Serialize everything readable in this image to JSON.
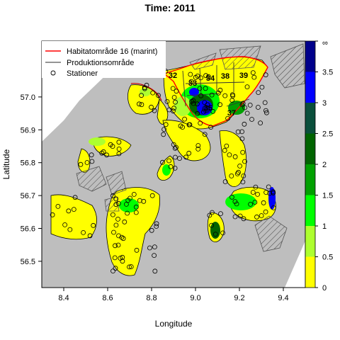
{
  "title": "Time: 2011",
  "xlabel": "Longitude",
  "ylabel": "Latitude",
  "legend": {
    "placement": "top-left",
    "items": [
      {
        "label": "Habitatområde 16 (marint)",
        "kind": "line",
        "color": "#ff0000"
      },
      {
        "label": "Produktionsområde",
        "kind": "line",
        "color": "#555555"
      },
      {
        "label": "Stationer",
        "kind": "circle",
        "color": "#000000"
      }
    ]
  },
  "map": {
    "xlim": [
      8.3,
      9.5
    ],
    "ylim": [
      56.42,
      57.17
    ],
    "xticks": [
      "8.4",
      "8.6",
      "8.8",
      "9.0",
      "9.2",
      "9.4"
    ],
    "yticks": [
      "56.5",
      "56.6",
      "56.7",
      "56.8",
      "56.9",
      "57.0"
    ],
    "land_color": "#bebebe",
    "water_color": "#ffff00",
    "area_labels": [
      "32",
      "33",
      "34",
      "38",
      "39",
      "35",
      "37"
    ]
  },
  "colorbar": {
    "ticks": [
      "0",
      "0.5",
      "1",
      "1.5",
      "2",
      "2.5",
      "3",
      "3.5"
    ],
    "top_label": "∞",
    "bins": [
      {
        "from": 0,
        "to": 0.5,
        "color": "#ffff00"
      },
      {
        "from": 0.5,
        "to": 1,
        "color": "#adff2f"
      },
      {
        "from": 1,
        "to": 1.5,
        "color": "#00ff00"
      },
      {
        "from": 1.5,
        "to": 2,
        "color": "#00a000"
      },
      {
        "from": 2,
        "to": 2.5,
        "color": "#006400"
      },
      {
        "from": 2.5,
        "to": 3,
        "color": "#0a4f3c"
      },
      {
        "from": 3,
        "to": 3.5,
        "color": "#0000ff"
      },
      {
        "from": 3.5,
        "to": 4,
        "color": "#00008b"
      }
    ]
  }
}
